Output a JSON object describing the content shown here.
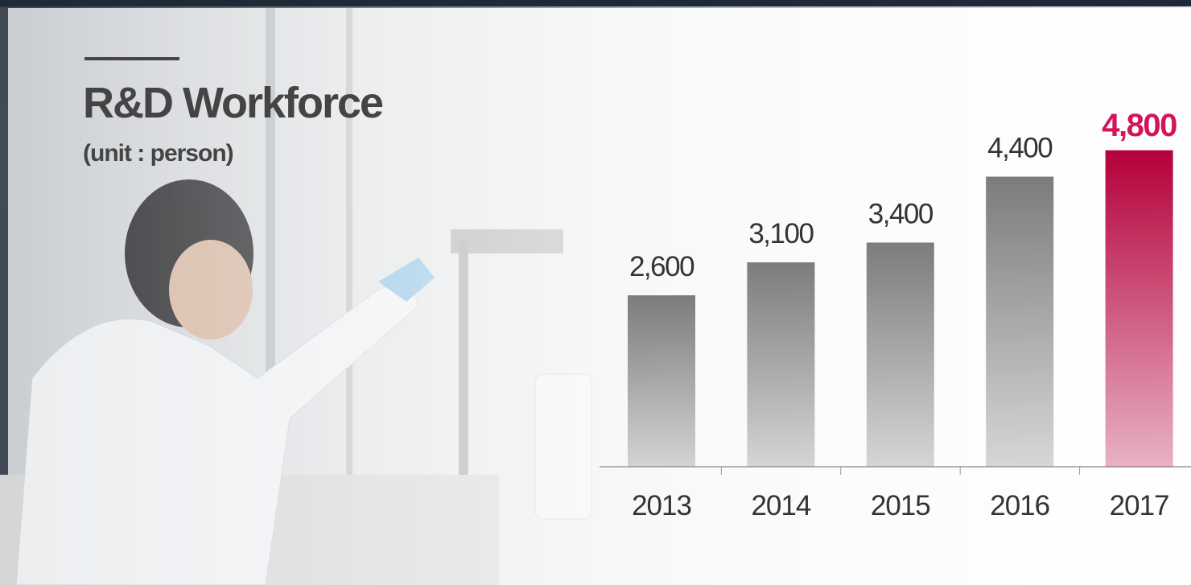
{
  "chart_data": {
    "type": "bar",
    "title": "R&D Workforce",
    "subtitle": "(unit : person)",
    "categories": [
      "2013",
      "2014",
      "2015",
      "2016",
      "2017"
    ],
    "values": [
      2600,
      3100,
      3400,
      4400,
      4800
    ],
    "value_labels": [
      "2,600",
      "3,100",
      "3,400",
      "4,400",
      "4,800"
    ],
    "colors": [
      "#7c7c7c",
      "#7c7c7c",
      "#7c7c7c",
      "#7c7c7c",
      "#b4003a"
    ],
    "highlight_index": 4
  }
}
